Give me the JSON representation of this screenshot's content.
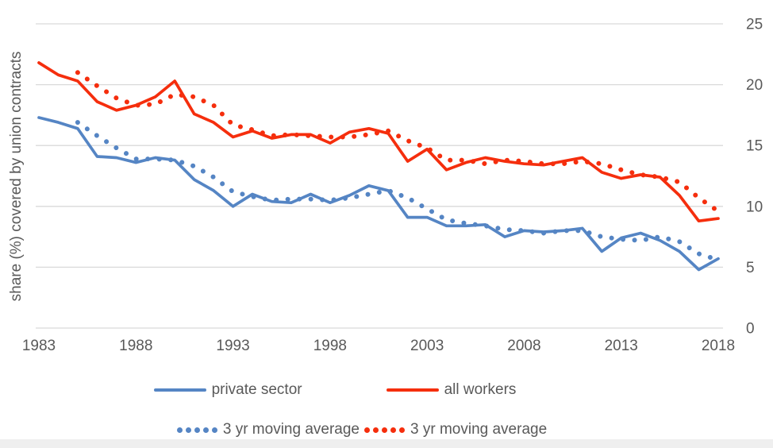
{
  "page": {
    "background_color": "#ffffff",
    "footer_strip_color": "#efefef"
  },
  "chart_data": {
    "type": "line",
    "title": "",
    "xlabel": "",
    "ylabel": "share (%) covered by union contracts",
    "xlim": [
      1983,
      2018
    ],
    "ylim": [
      0,
      25
    ],
    "xticks": [
      1983,
      1988,
      1993,
      1998,
      2003,
      2008,
      2013,
      2018
    ],
    "yticks": [
      0,
      5,
      10,
      15,
      20,
      25
    ],
    "ytick_side": "right",
    "grid": "horizontal",
    "gridline_color": "#d9d9d9",
    "axis_text_color": "#595959",
    "legend_position": "bottom",
    "x": [
      1983,
      1984,
      1985,
      1986,
      1987,
      1988,
      1989,
      1990,
      1991,
      1992,
      1993,
      1994,
      1995,
      1996,
      1997,
      1998,
      1999,
      2000,
      2001,
      2002,
      2003,
      2004,
      2005,
      2006,
      2007,
      2008,
      2009,
      2010,
      2011,
      2012,
      2013,
      2014,
      2015,
      2016,
      2017,
      2018
    ],
    "series": [
      {
        "name": "private sector",
        "color": "#5585c4",
        "style": "solid",
        "values": [
          17.3,
          16.9,
          16.4,
          14.1,
          14.0,
          13.6,
          14.0,
          13.8,
          12.2,
          11.3,
          10.0,
          11.0,
          10.4,
          10.3,
          11.0,
          10.3,
          10.9,
          11.7,
          11.3,
          9.1,
          9.1,
          8.4,
          8.4,
          8.5,
          7.5,
          8.0,
          7.9,
          8.0,
          8.2,
          6.3,
          7.4,
          7.8,
          7.2,
          6.3,
          4.8,
          5.7
        ]
      },
      {
        "name": "all workers",
        "color": "#f52e0d",
        "style": "solid",
        "values": [
          21.8,
          20.8,
          20.3,
          18.6,
          17.9,
          18.3,
          19.0,
          20.3,
          17.6,
          16.9,
          15.7,
          16.2,
          15.6,
          15.9,
          15.9,
          15.2,
          16.1,
          16.4,
          16.0,
          13.7,
          14.7,
          13.0,
          13.6,
          14.0,
          13.7,
          13.5,
          13.4,
          13.7,
          14.0,
          12.8,
          12.3,
          12.6,
          12.4,
          10.9,
          8.8,
          9.0
        ]
      },
      {
        "name": "3 yr moving average",
        "color": "#5585c4",
        "style": "dotted",
        "values": [
          null,
          null,
          16.9,
          15.8,
          14.8,
          13.9,
          13.9,
          13.8,
          13.3,
          12.4,
          11.2,
          10.8,
          10.5,
          10.6,
          10.6,
          10.5,
          10.7,
          11.0,
          11.3,
          10.7,
          9.8,
          8.9,
          8.6,
          8.4,
          8.1,
          8.0,
          7.8,
          8.0,
          8.0,
          7.5,
          7.3,
          7.2,
          7.5,
          7.1,
          6.1,
          5.6
        ]
      },
      {
        "name": "3 yr moving average",
        "color": "#f52e0d",
        "style": "dotted",
        "values": [
          null,
          null,
          21.0,
          19.9,
          18.9,
          18.3,
          18.4,
          19.2,
          19.0,
          18.3,
          16.7,
          16.3,
          15.8,
          15.9,
          15.8,
          15.7,
          15.7,
          15.9,
          16.2,
          15.4,
          14.8,
          13.8,
          13.8,
          13.5,
          13.8,
          13.7,
          13.5,
          13.5,
          13.7,
          13.5,
          13.0,
          12.6,
          12.4,
          12.0,
          10.7,
          9.6
        ]
      }
    ]
  }
}
